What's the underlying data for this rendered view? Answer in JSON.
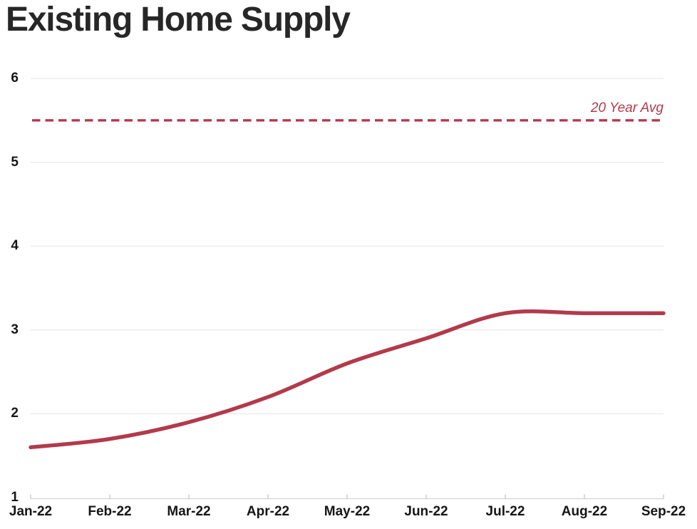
{
  "page": {
    "title": "Existing Home Supply"
  },
  "chart_data": {
    "type": "line",
    "title": "Existing Home Supply",
    "categories": [
      "Jan-22",
      "Feb-22",
      "Mar-22",
      "Apr-22",
      "May-22",
      "Jun-22",
      "Jul-22",
      "Aug-22",
      "Sep-22"
    ],
    "series": [
      {
        "name": "Existing Home Supply (months)",
        "values": [
          1.6,
          1.7,
          1.9,
          2.2,
          2.6,
          2.9,
          3.2,
          3.2,
          3.2
        ],
        "color": "#b23a4b",
        "style": "solid-smooth"
      }
    ],
    "reference_line": {
      "label": "20 Year Avg",
      "value": 5.5,
      "color": "#b5394d",
      "style": "dashed"
    },
    "xlabel": "",
    "ylabel": "",
    "ylim": [
      1,
      6
    ],
    "y_ticks": [
      6,
      5,
      4,
      3,
      2,
      1
    ],
    "grid": "horizontal",
    "legend_position": "none",
    "colors": {
      "line": "#b23a4b",
      "reference": "#b5394d",
      "grid": "#e5e5e5",
      "axis": "#d2d2d2",
      "tick": "#c2c2c2",
      "text": "#161616",
      "title": "#272727",
      "background": "#ffffff"
    }
  }
}
